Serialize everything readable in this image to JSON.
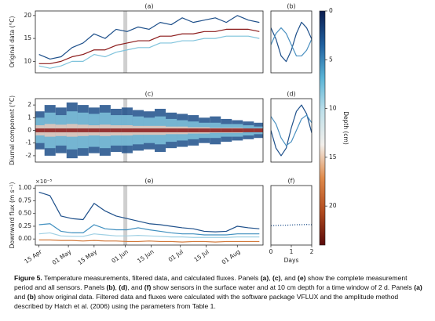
{
  "chart_data": [
    {
      "type": "line",
      "title": "(a)",
      "ylabel": "Original data (°C)",
      "xlim": [
        -2,
        122
      ],
      "ylim": [
        7.5,
        21
      ],
      "yticks": [
        10,
        15,
        20
      ],
      "highlight_x": 47,
      "highlight_color": "#cfcfcf",
      "x": [
        0,
        6,
        12,
        18,
        24,
        30,
        36,
        42,
        48,
        54,
        60,
        66,
        72,
        78,
        84,
        90,
        96,
        102,
        108,
        114,
        120
      ],
      "series": [
        {
          "color": "#1d4f8a",
          "values": [
            11.5,
            10.5,
            11,
            13,
            14,
            16,
            15,
            17,
            16.5,
            17.5,
            17,
            18.5,
            18,
            19.5,
            18.5,
            19,
            19.5,
            18.5,
            20,
            19,
            18.5
          ]
        },
        {
          "color": "#7fc3dc",
          "values": [
            9,
            8.5,
            9,
            10,
            10,
            11.5,
            11,
            12,
            12.5,
            13,
            13,
            14,
            14,
            14.5,
            14.5,
            15,
            15,
            15.5,
            15.5,
            15.5,
            15
          ]
        },
        {
          "color": "#8b1a1a",
          "values": [
            9.5,
            9.5,
            10,
            11,
            11.5,
            12.5,
            12.5,
            13.5,
            14,
            14.5,
            14.5,
            15.5,
            15.5,
            16,
            16,
            16.5,
            16.5,
            17,
            17,
            17,
            16.5
          ]
        }
      ]
    },
    {
      "type": "line",
      "title": "(b)",
      "xlim": [
        0,
        2
      ],
      "ylim": [
        15,
        20.5
      ],
      "x": [
        0,
        0.25,
        0.5,
        0.75,
        1,
        1.25,
        1.5,
        1.75,
        2
      ],
      "series": [
        {
          "color": "#1d4f8a",
          "values": [
            19,
            18,
            16.5,
            16,
            17,
            18.5,
            19.5,
            19,
            18
          ]
        },
        {
          "color": "#4a90c0",
          "values": [
            17.5,
            18.5,
            19,
            18.5,
            17.5,
            16.5,
            16.5,
            17,
            18
          ]
        }
      ]
    },
    {
      "type": "bar",
      "title": "(c)",
      "ylabel": "Diurnal component (°C)",
      "xlim": [
        -2,
        122
      ],
      "ylim": [
        -2.5,
        2.5
      ],
      "yticks": [
        -2,
        -1,
        0,
        1,
        2
      ],
      "highlight_x": 47,
      "highlight_color": "#cfcfcf",
      "x": [
        0,
        6,
        12,
        18,
        24,
        30,
        36,
        42,
        48,
        54,
        60,
        66,
        72,
        78,
        84,
        90,
        96,
        102,
        108,
        114,
        120
      ],
      "series": [
        {
          "color": "#1d4f8a",
          "values": [
            1.5,
            2.0,
            1.8,
            2.2,
            2.0,
            1.8,
            2.0,
            1.7,
            1.8,
            1.6,
            1.5,
            1.7,
            1.4,
            1.3,
            1.2,
            1.0,
            1.1,
            0.9,
            0.8,
            0.7,
            0.6
          ]
        },
        {
          "color": "#7fc3dc",
          "values": [
            1.0,
            1.4,
            1.2,
            1.5,
            1.4,
            1.3,
            1.4,
            1.2,
            1.2,
            1.1,
            1.0,
            1.1,
            0.9,
            0.8,
            0.7,
            0.6,
            0.6,
            0.5,
            0.5,
            0.4,
            0.3
          ]
        },
        {
          "color": "#e9c7b8",
          "values": [
            0.4,
            0.5,
            0.45,
            0.5,
            0.45,
            0.4,
            0.45,
            0.4,
            0.4,
            0.35,
            0.35,
            0.35,
            0.3,
            0.3,
            0.25,
            0.25,
            0.2,
            0.2,
            0.2,
            0.15,
            0.15
          ]
        },
        {
          "color": "#8b1a1a",
          "values": [
            0.15,
            0.15,
            0.15,
            0.15,
            0.15,
            0.15,
            0.15,
            0.15,
            0.15,
            0.15,
            0.15,
            0.15,
            0.15,
            0.15,
            0.15,
            0.15,
            0.15,
            0.15,
            0.15,
            0.15,
            0.15
          ]
        }
      ]
    },
    {
      "type": "line",
      "title": "(d)",
      "xlim": [
        0,
        2
      ],
      "ylim": [
        -2.5,
        2.5
      ],
      "x": [
        0,
        0.25,
        0.5,
        0.75,
        1,
        1.25,
        1.5,
        1.75,
        2
      ],
      "series": [
        {
          "color": "#1d4f8a",
          "values": [
            0,
            -1.4,
            -2,
            -1.4,
            0.2,
            1.5,
            2,
            1.3,
            -0.2
          ]
        },
        {
          "color": "#4a90c0",
          "values": [
            1.1,
            0.5,
            -0.6,
            -1.2,
            -0.9,
            0,
            0.9,
            1.2,
            0.6
          ]
        }
      ]
    },
    {
      "type": "line",
      "title": "(e)",
      "ylabel": "Downward flux (m s⁻¹)",
      "y_offset_label": "×10⁻⁵",
      "xlim": [
        -2,
        122
      ],
      "ylim": [
        -0.12,
        1.05
      ],
      "yticks": [
        {
          "value": 0,
          "label": "0.00"
        },
        {
          "value": 0.25,
          "label": "0.25"
        },
        {
          "value": 0.5,
          "label": "0.50"
        },
        {
          "value": 0.75,
          "label": "0.75"
        },
        {
          "value": 1,
          "label": "1.00"
        }
      ],
      "xticks": [
        {
          "value": 0,
          "label": "15 Apr"
        },
        {
          "value": 16,
          "label": "01 May"
        },
        {
          "value": 30,
          "label": "15 May"
        },
        {
          "value": 47,
          "label": "01 Jun"
        },
        {
          "value": 61,
          "label": "15 Jun"
        },
        {
          "value": 77,
          "label": "01 Jul"
        },
        {
          "value": 91,
          "label": "15 Jul"
        },
        {
          "value": 108,
          "label": "01 Aug"
        }
      ],
      "highlight_x": 47,
      "highlight_color": "#cfcfcf",
      "x": [
        0,
        6,
        12,
        18,
        24,
        30,
        36,
        42,
        48,
        54,
        60,
        66,
        72,
        78,
        84,
        90,
        96,
        102,
        108,
        114,
        120
      ],
      "series": [
        {
          "color": "#1d4f8a",
          "values": [
            0.92,
            0.85,
            0.45,
            0.4,
            0.38,
            0.7,
            0.55,
            0.45,
            0.4,
            0.35,
            0.3,
            0.28,
            0.25,
            0.22,
            0.2,
            0.15,
            0.14,
            0.15,
            0.25,
            0.22,
            0.2
          ]
        },
        {
          "color": "#3f8fbf",
          "values": [
            0.28,
            0.3,
            0.15,
            0.12,
            0.12,
            0.28,
            0.2,
            0.18,
            0.18,
            0.22,
            0.18,
            0.15,
            0.12,
            0.1,
            0.1,
            0.08,
            0.08,
            0.08,
            0.1,
            0.1,
            0.1
          ]
        },
        {
          "color": "#9fd0e4",
          "values": [
            0.1,
            0.12,
            0.06,
            0.05,
            0.05,
            0.1,
            0.08,
            0.06,
            0.06,
            0.07,
            0.06,
            0.05,
            0.04,
            0.04,
            0.03,
            0.03,
            0.03,
            0.03,
            0.04,
            0.04,
            0.04
          ]
        },
        {
          "color": "#d27a3c",
          "values": [
            -0.02,
            -0.02,
            -0.03,
            -0.03,
            -0.04,
            -0.03,
            -0.04,
            -0.04,
            -0.05,
            -0.05,
            -0.04,
            -0.05,
            -0.05,
            -0.06,
            -0.05,
            -0.05,
            -0.06,
            -0.05,
            -0.05,
            -0.05,
            -0.05
          ]
        }
      ]
    },
    {
      "type": "line",
      "title": "(f)",
      "xlabel": "Days",
      "xlim": [
        0,
        2
      ],
      "ylim": [
        -0.12,
        1.05
      ],
      "xticks": [
        0,
        1,
        2
      ],
      "linestyle": "dotted",
      "x": [
        0,
        0.25,
        0.5,
        0.75,
        1,
        1.25,
        1.5,
        1.75,
        2
      ],
      "series": [
        {
          "color": "#1d4f8a",
          "values": [
            0.26,
            0.265,
            0.27,
            0.27,
            0.275,
            0.28,
            0.28,
            0.285,
            0.28
          ]
        }
      ]
    }
  ],
  "colorbar": {
    "label": "Depth (cm)",
    "ylim": [
      0,
      24
    ],
    "yticks": [
      0,
      5,
      10,
      15,
      20
    ],
    "colors": [
      "#0b1d4f",
      "#1f5f9e",
      "#5ab4d6",
      "#bfe0ea",
      "#f2efeb",
      "#e08a4a",
      "#b04a1e",
      "#5a0a0a"
    ]
  },
  "caption": [
    {
      "text": "Figure 5.",
      "bold": true
    },
    {
      "text": " Temperature measurements, filtered data, and calculated fluxes. Panels "
    },
    {
      "text": "(a)",
      "bold": true
    },
    {
      "text": ", "
    },
    {
      "text": "(c)",
      "bold": true
    },
    {
      "text": ", and "
    },
    {
      "text": "(e)",
      "bold": true
    },
    {
      "text": " show the complete measurement period and all sensors. Panels "
    },
    {
      "text": "(b)",
      "bold": true
    },
    {
      "text": ", "
    },
    {
      "text": "(d)",
      "bold": true
    },
    {
      "text": ", and "
    },
    {
      "text": "(f)",
      "bold": true
    },
    {
      "text": " show sensors in the surface water and at 10 cm depth for a time window of 2 d. Panels "
    },
    {
      "text": "(a)",
      "bold": true
    },
    {
      "text": " and "
    },
    {
      "text": "(b)",
      "bold": true
    },
    {
      "text": " show original data. Filtered data and fluxes were calculated with the software package VFLUX and the amplitude method described by Hatch et al. (2006) using the parameters from Table 1."
    }
  ]
}
